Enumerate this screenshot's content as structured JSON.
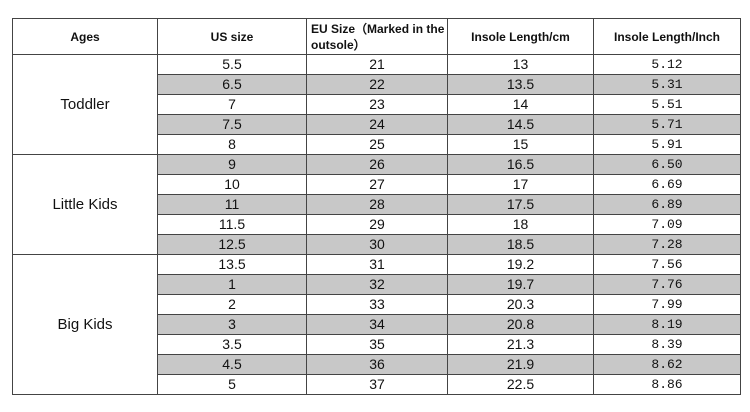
{
  "table": {
    "columns": [
      "Ages",
      "US size",
      "EU Size（Marked in the outsole）",
      "Insole Length/cm",
      "Insole Length/Inch"
    ],
    "groups": [
      {
        "label": "Toddler",
        "rows": [
          [
            "5.5",
            "21",
            "13",
            "5.12"
          ],
          [
            "6.5",
            "22",
            "13.5",
            "5.31"
          ],
          [
            "7",
            "23",
            "14",
            "5.51"
          ],
          [
            "7.5",
            "24",
            "14.5",
            "5.71"
          ],
          [
            "8",
            "25",
            "15",
            "5.91"
          ]
        ]
      },
      {
        "label": "Little Kids",
        "rows": [
          [
            "9",
            "26",
            "16.5",
            "6.50"
          ],
          [
            "10",
            "27",
            "17",
            "6.69"
          ],
          [
            "11",
            "28",
            "17.5",
            "6.89"
          ],
          [
            "11.5",
            "29",
            "18",
            "7.09"
          ],
          [
            "12.5",
            "30",
            "18.5",
            "7.28"
          ]
        ]
      },
      {
        "label": "Big Kids",
        "rows": [
          [
            "13.5",
            "31",
            "19.2",
            "7.56"
          ],
          [
            "1",
            "32",
            "19.7",
            "7.76"
          ],
          [
            "2",
            "33",
            "20.3",
            "7.99"
          ],
          [
            "3",
            "34",
            "20.8",
            "8.19"
          ],
          [
            "3.5",
            "35",
            "21.3",
            "8.39"
          ],
          [
            "4.5",
            "36",
            "21.9",
            "8.62"
          ],
          [
            "5",
            "37",
            "22.5",
            "8.86"
          ]
        ]
      }
    ]
  }
}
